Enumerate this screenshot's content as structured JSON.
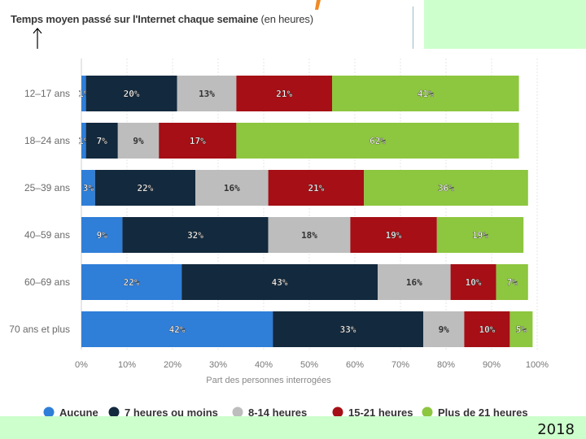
{
  "header": {
    "title": "Temps moyen passé sur l'Internet chaque semaine",
    "title_unit": "(en heures)"
  },
  "footer": {
    "year": "2018"
  },
  "chart_data": {
    "type": "bar",
    "orientation": "horizontal",
    "stacked": true,
    "categories": [
      "12–17 ans",
      "18–24 ans",
      "25–39 ans",
      "40–59 ans",
      "60–69 ans",
      "70 ans et plus"
    ],
    "series": [
      {
        "name": "Aucune",
        "color": "#2f7ed8",
        "values": [
          1,
          1,
          3,
          9,
          22,
          42
        ],
        "labels": [
          "1%",
          "1%",
          "3%",
          "9%",
          "22%",
          "42%"
        ]
      },
      {
        "name": "7 heures ou moins",
        "color": "#13293d",
        "values": [
          20,
          7,
          22,
          32,
          43,
          33
        ],
        "labels": [
          "20%",
          "7%",
          "22%",
          "32%",
          "43%",
          "33%"
        ]
      },
      {
        "name": "8-14 heures",
        "color": "#bdbdbd",
        "values": [
          13,
          9,
          16,
          18,
          16,
          9
        ],
        "labels": [
          "13%",
          "9%",
          "16%",
          "18%",
          "16%",
          "9%"
        ]
      },
      {
        "name": "15-21 heures",
        "color": "#a50f15",
        "values": [
          21,
          17,
          21,
          19,
          10,
          10
        ],
        "labels": [
          "21%",
          "17%",
          "21%",
          "19%",
          "10%",
          "10%"
        ]
      },
      {
        "name": "Plus de 21 heures",
        "color": "#8dc63f",
        "values": [
          41,
          62,
          36,
          19,
          7,
          5
        ],
        "labels": [
          "41%",
          "62%",
          "36%",
          "19%",
          "7%",
          "5%"
        ]
      }
    ],
    "xlabel": "Part des personnes interrogées",
    "xlim": [
      0,
      100
    ],
    "xticks": [
      "0%",
      "10%",
      "20%",
      "30%",
      "40%",
      "50%",
      "60%",
      "70%",
      "80%",
      "90%",
      "100%"
    ],
    "grid": true,
    "legend": "bottom"
  }
}
